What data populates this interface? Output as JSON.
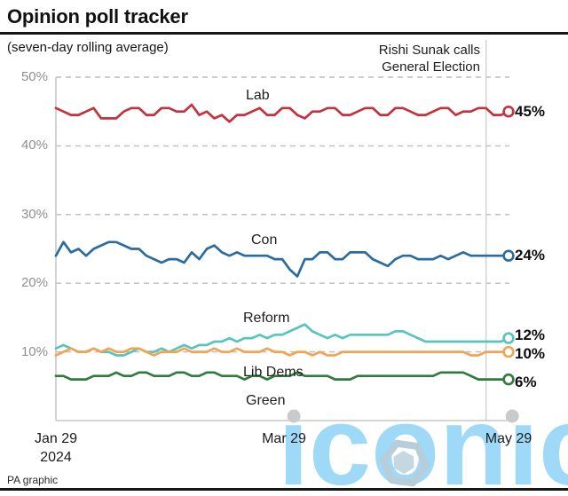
{
  "header": {
    "title": "Opinion poll tracker",
    "subtitle": "(seven-day rolling average)"
  },
  "annotation": {
    "line1": "Rishi Sunak calls",
    "line2": "General Election"
  },
  "footer": {
    "credit": "PA graphic"
  },
  "watermark": {
    "text": "iconic",
    "display": "ıconıc",
    "color": "#9ed9f7",
    "hex_color": "#b7cdd9",
    "dot_color": "#c9cacb",
    "dot_days": [
      63.6,
      122
    ]
  },
  "chart_data": {
    "type": "line",
    "title": "Opinion poll tracker",
    "subtitle": "(seven-day rolling average)",
    "x_unit": "days since 29 Jan 2024",
    "x_days_total": 121,
    "x_ticks": [
      {
        "day": 0,
        "label": "Jan 29",
        "sublabel": "2024"
      },
      {
        "day": 61,
        "label": "Mar 29"
      },
      {
        "day": 121,
        "label": "May 29"
      }
    ],
    "ylim": [
      0,
      50
    ],
    "y_ticks": [
      {
        "value": 50,
        "label": "50%"
      },
      {
        "value": 40,
        "label": "40%"
      },
      {
        "value": 30,
        "label": "30%"
      },
      {
        "value": 20,
        "label": "20%"
      },
      {
        "value": 10,
        "label": "10%"
      }
    ],
    "grid": "dashed-horizontal",
    "grid_color": "#bcbcbc",
    "axis_color": "#c9c9c9",
    "event_line": {
      "day": 115,
      "label1": "Rishi Sunak calls",
      "label2": "General Election"
    },
    "series": [
      {
        "name": "Lab",
        "color": "#c5313c",
        "end_value": 45,
        "end_label": "45%",
        "values": [
          45.5,
          45,
          44.5,
          44.5,
          45,
          45.5,
          44,
          44,
          44,
          45,
          45.5,
          45.5,
          44.5,
          44.5,
          45.5,
          45.5,
          45,
          45,
          46,
          44.5,
          45,
          44,
          44.5,
          43.5,
          44.5,
          44.5,
          45,
          45.5,
          44.5,
          44.5,
          45.5,
          45.5,
          44.5,
          44,
          45,
          45,
          45.5,
          45.5,
          44.5,
          44.5,
          45,
          45.5,
          45.5,
          44.5,
          44.5,
          45.5,
          45.5,
          45,
          44.5,
          44.5,
          45,
          45.5,
          45.5,
          44.5,
          45,
          45,
          45.5,
          45.5,
          44.5,
          44.5,
          45
        ]
      },
      {
        "name": "Con",
        "color": "#2b6ca0",
        "end_value": 24,
        "end_label": "24%",
        "values": [
          24,
          26,
          24.5,
          25,
          24,
          25,
          25.5,
          26,
          26,
          25.5,
          25,
          25,
          24,
          23.5,
          23,
          23.5,
          23.5,
          23,
          24.5,
          23.5,
          25,
          25.5,
          24.5,
          24,
          24.5,
          24,
          24,
          24,
          24,
          23.5,
          23.5,
          22,
          21,
          23.5,
          23.5,
          24.5,
          24.5,
          23.5,
          23.5,
          24.5,
          24.5,
          24.5,
          23.5,
          23,
          22.5,
          23.5,
          24,
          24,
          23.5,
          23.5,
          23.5,
          24,
          23.5,
          24,
          24.5,
          24,
          24,
          24,
          24,
          24,
          24
        ]
      },
      {
        "name": "Reform",
        "color": "#59c4be",
        "end_value": 12,
        "end_label": "12%",
        "values": [
          10.5,
          11,
          10.5,
          10,
          10,
          10.5,
          10,
          10,
          9.5,
          9.5,
          10,
          10.5,
          10,
          10,
          10.5,
          10,
          10.5,
          11,
          10.5,
          11,
          11,
          11.5,
          11.5,
          12,
          11.5,
          12,
          12,
          12.5,
          12,
          12.5,
          12.5,
          13,
          13.5,
          14,
          13,
          12.5,
          12,
          12.5,
          12,
          12.5,
          12.5,
          12.5,
          12.5,
          12.5,
          12.5,
          13,
          13,
          12.5,
          12,
          11.5,
          11.5,
          11.5,
          11.5,
          11.5,
          11.5,
          11.5,
          11.5,
          11.5,
          11.5,
          11.5,
          12
        ]
      },
      {
        "name": "Lib Dems",
        "color": "#f2a455",
        "end_value": 10,
        "end_label": "10%",
        "values": [
          9.5,
          10,
          10.5,
          10,
          10,
          10.5,
          10,
          10.5,
          10,
          10,
          10.5,
          10.5,
          10,
          9.5,
          10,
          10,
          10,
          10.5,
          10,
          10,
          10,
          10.5,
          10,
          10,
          10.5,
          10,
          10,
          10,
          10.5,
          10,
          10,
          9.5,
          10,
          10,
          9.5,
          10,
          9.5,
          9.5,
          10,
          10,
          10,
          10,
          10,
          10,
          10,
          10,
          10,
          10,
          10,
          10,
          10,
          10,
          10,
          10,
          10,
          9.5,
          9.5,
          10,
          10,
          10,
          10
        ]
      },
      {
        "name": "Green",
        "color": "#2e7b3d",
        "end_value": 6,
        "end_label": "6%",
        "values": [
          6.5,
          6.5,
          6,
          6,
          6,
          6.5,
          6.5,
          6.5,
          7,
          6.5,
          6.5,
          7,
          7,
          6.5,
          6.5,
          6.5,
          7,
          7,
          6.5,
          6.5,
          7,
          7,
          6.5,
          6.5,
          6.5,
          6,
          6.5,
          6.5,
          6,
          6.5,
          6.5,
          6.5,
          7,
          6.5,
          6.5,
          6.5,
          6.5,
          6,
          6,
          6,
          6.5,
          6.5,
          6.5,
          6.5,
          6.5,
          6.5,
          6.5,
          6.5,
          6.5,
          6.5,
          6.5,
          7,
          7,
          7,
          7,
          6.5,
          6,
          6,
          6,
          6,
          6
        ]
      }
    ]
  }
}
